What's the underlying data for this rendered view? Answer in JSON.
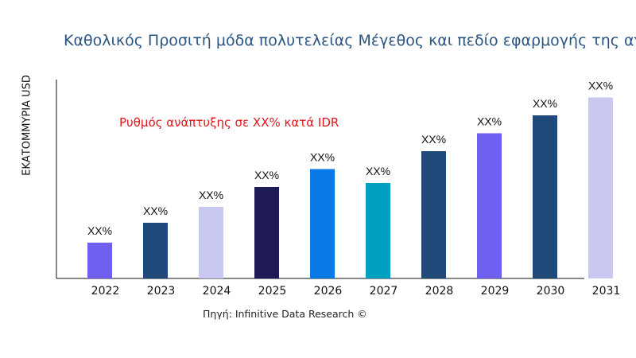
{
  "chart_data": {
    "type": "bar",
    "title": "Καθολικός Προσιτή μόδα πολυτελείας Μέγεθος και πεδίο εφαρμογής της αγο",
    "ylabel": "ΕΚΑΤΟΜΜΥΡΙΑ USD",
    "xlabel": "",
    "categories": [
      "2022",
      "2023",
      "2024",
      "2025",
      "2026",
      "2027",
      "2028",
      "2029",
      "2030",
      "2031"
    ],
    "values": [
      18,
      28,
      36,
      46,
      55,
      48,
      64,
      73,
      82,
      91
    ],
    "data_labels": [
      "XX%",
      "XX%",
      "XX%",
      "XX%",
      "XX%",
      "XX%",
      "XX%",
      "XX%",
      "XX%",
      "XX%"
    ],
    "colors": [
      "#7060f0",
      "#1f4a7a",
      "#c8c8f0",
      "#1e1a55",
      "#0a7ae6",
      "#00a0c0",
      "#1f4a7a",
      "#7060f0",
      "#1f4a7a",
      "#c8c8f0"
    ],
    "ylim": [
      0,
      100
    ],
    "grid": false,
    "annotation": "Ρυθμός ανάπτυξης σε XX% κατά IDR",
    "source": "Πηγή: Infinitive Data Research ©"
  }
}
